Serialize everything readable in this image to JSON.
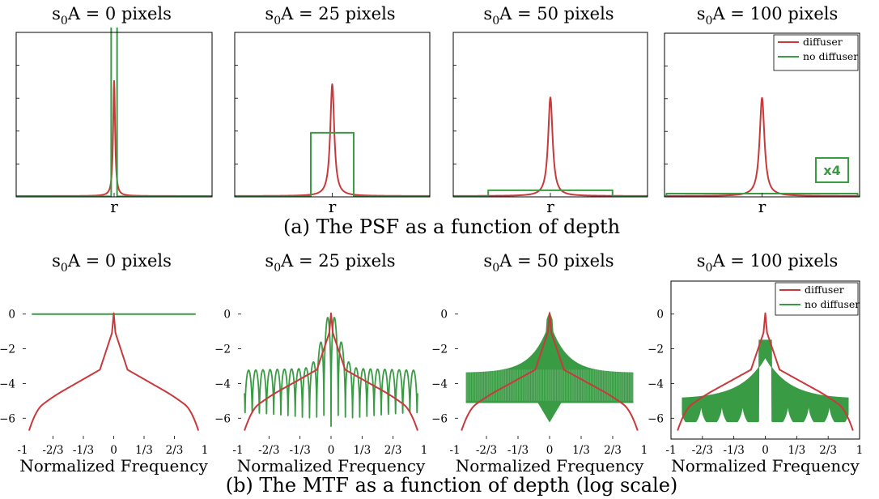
{
  "colors": {
    "diffuser": "#c8393b",
    "no_diffuser": "#3a9b45",
    "axis": "#000000"
  },
  "captions": {
    "psf": "(a) The PSF as a function of depth",
    "mtf": "(b) The MTF as a function of depth (log scale)"
  },
  "legend": {
    "diffuser": "diffuser",
    "no_diffuser": "no diffuser"
  },
  "psf_scale_badge": "x4",
  "chart_data": [
    {
      "type": "line",
      "row": "psf",
      "title_main": "s",
      "title_sub": "0",
      "title_rest": "A  = 0 pixels",
      "xlabel": "r",
      "ylabel": "",
      "xlim": [
        -1,
        1
      ],
      "ylim": [
        0,
        1.0
      ],
      "series": [
        {
          "key": "diffuser",
          "kind": "lorentz",
          "center": 0,
          "peak": 0.7,
          "width": 0.012,
          "baseline": 0.005
        },
        {
          "key": "no_diffuser",
          "kind": "box",
          "x0": -0.03,
          "x1": 0.03,
          "height": 1.05
        }
      ]
    },
    {
      "type": "line",
      "row": "psf",
      "title_main": "s",
      "title_sub": "0",
      "title_rest": "A  = 25 pixels",
      "xlabel": "r",
      "ylabel": "",
      "xlim": [
        -1,
        1
      ],
      "ylim": [
        0,
        1.0
      ],
      "series": [
        {
          "key": "diffuser",
          "kind": "lorentz",
          "center": 0,
          "peak": 0.68,
          "width": 0.025,
          "baseline": 0.005
        },
        {
          "key": "no_diffuser",
          "kind": "box",
          "x0": -0.22,
          "x1": 0.22,
          "height": 0.39
        }
      ]
    },
    {
      "type": "line",
      "row": "psf",
      "title_main": "s",
      "title_sub": "0",
      "title_rest": "A  = 50 pixels",
      "xlabel": "r",
      "ylabel": "",
      "xlim": [
        -1,
        1
      ],
      "ylim": [
        0,
        1.0
      ],
      "series": [
        {
          "key": "diffuser",
          "kind": "lorentz",
          "center": 0,
          "peak": 0.6,
          "width": 0.028,
          "baseline": 0.005
        },
        {
          "key": "no_diffuser",
          "kind": "box",
          "x0": -0.64,
          "x1": 0.64,
          "height": 0.04
        }
      ]
    },
    {
      "type": "line",
      "row": "psf",
      "title_main": "s",
      "title_sub": "0",
      "title_rest": "A  = 100 pixels",
      "xlabel": "r",
      "ylabel": "",
      "xlim": [
        -1,
        1
      ],
      "ylim": [
        0,
        1.0
      ],
      "series": [
        {
          "key": "diffuser",
          "kind": "lorentz",
          "center": 0,
          "peak": 0.6,
          "width": 0.03,
          "baseline": 0.005
        },
        {
          "key": "no_diffuser",
          "kind": "box",
          "x0": -0.98,
          "x1": 0.98,
          "height": 0.02
        }
      ],
      "legend": "top-right",
      "badge": true
    },
    {
      "type": "line",
      "row": "mtf",
      "title_main": "s",
      "title_sub": "0",
      "title_rest": "A  = 0 pixels",
      "xlabel": "Normalized Frequency",
      "ylabel": "",
      "xlim": [
        -1,
        1
      ],
      "ylim": [
        -7.2,
        1.9
      ],
      "xticks": [
        "-1",
        "-2/3",
        "-1/3",
        "0",
        "1/3",
        "2/3",
        "1"
      ],
      "yticks": [
        "0",
        "−2",
        "−4",
        "−6"
      ],
      "show_y_ticks": true,
      "show_box": false,
      "series": [
        {
          "key": "no_diffuser",
          "kind": "flat",
          "value": 0
        },
        {
          "key": "diffuser",
          "kind": "mtf_diffuser"
        }
      ]
    },
    {
      "type": "line",
      "row": "mtf",
      "title_main": "s",
      "title_sub": "0",
      "title_rest": "A  = 25 pixels",
      "xlabel": "Normalized Frequency",
      "ylabel": "",
      "xlim": [
        -1,
        1
      ],
      "ylim": [
        -7.2,
        1.9
      ],
      "xticks": [
        "-1",
        "-2/3",
        "-1/3",
        "0",
        "1/3",
        "2/3",
        "1"
      ],
      "yticks": [
        "0",
        "−2",
        "−4",
        "−6"
      ],
      "show_y_ticks": true,
      "show_box": false,
      "series": [
        {
          "key": "no_diffuser",
          "kind": "sinc",
          "period": 0.077,
          "floor": -6.8,
          "envelope": -3.1,
          "center_peak": 0.05
        },
        {
          "key": "diffuser",
          "kind": "mtf_diffuser"
        }
      ]
    },
    {
      "type": "line",
      "row": "mtf",
      "title_main": "s",
      "title_sub": "0",
      "title_rest": "A  = 50 pixels",
      "xlabel": "Normalized Frequency",
      "ylabel": "",
      "xlim": [
        -1,
        1
      ],
      "ylim": [
        -7.2,
        1.9
      ],
      "xticks": [
        "-1",
        "-2/3",
        "-1/3",
        "0",
        "1/3",
        "2/3",
        "1"
      ],
      "yticks": [
        "0",
        "−2",
        "−4",
        "−6"
      ],
      "show_y_ticks": true,
      "show_box": false,
      "series": [
        {
          "key": "no_diffuser",
          "kind": "band",
          "top_inner": -0.5,
          "top_outer": -3.4,
          "bottom": -5.1,
          "bottom_inner": -6.2
        },
        {
          "key": "diffuser",
          "kind": "mtf_diffuser"
        }
      ]
    },
    {
      "type": "line",
      "row": "mtf",
      "title_main": "s",
      "title_sub": "0",
      "title_rest": "A  = 100 pixels",
      "xlabel": "Normalized Frequency",
      "ylabel": "",
      "xlim": [
        -1,
        1
      ],
      "ylim": [
        -7.2,
        1.9
      ],
      "xticks": [
        "-1",
        "-2/3",
        "-1/3",
        "0",
        "1/3",
        "2/3",
        "1"
      ],
      "yticks": [
        "0",
        "−2",
        "−4",
        "−6"
      ],
      "show_y_ticks": true,
      "show_box": true,
      "legend": "top-right",
      "series": [
        {
          "key": "no_diffuser",
          "kind": "scallop",
          "top_inner": -2.5,
          "top_outer": -4.9,
          "bottom": -6.2
        },
        {
          "key": "diffuser",
          "kind": "mtf_diffuser"
        }
      ]
    }
  ]
}
